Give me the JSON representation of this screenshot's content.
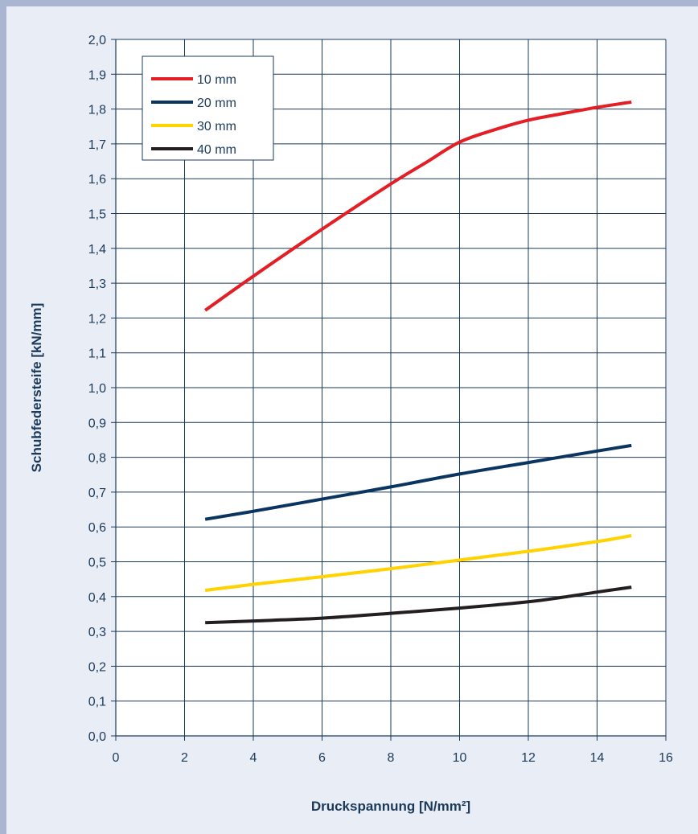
{
  "chart_data": {
    "type": "line",
    "title": "",
    "xlabel": "Druckspannung [N/mm²]",
    "ylabel": "Schubfedersteife [kN/mm]",
    "xlim": [
      0,
      16
    ],
    "ylim": [
      0,
      2.0
    ],
    "x_ticks": [
      0,
      2,
      4,
      6,
      8,
      10,
      12,
      14,
      16
    ],
    "x_tick_labels": [
      "0",
      "2",
      "4",
      "6",
      "8",
      "10",
      "12",
      "14",
      "16"
    ],
    "y_ticks": [
      0,
      0.1,
      0.2,
      0.3,
      0.4,
      0.5,
      0.6,
      0.7,
      0.8,
      0.9,
      1.0,
      1.1,
      1.2,
      1.3,
      1.4,
      1.5,
      1.6,
      1.7,
      1.8,
      1.9,
      2.0
    ],
    "y_tick_labels": [
      "0,0",
      "0,1",
      "0,2",
      "0,3",
      "0,4",
      "0,5",
      "0,6",
      "0,7",
      "0,8",
      "0,9",
      "1,0",
      "1,1",
      "1,2",
      "1,3",
      "1,4",
      "1,5",
      "1,6",
      "1,7",
      "1,8",
      "1,9",
      "2,0"
    ],
    "grid": true,
    "legend_position": "top-left",
    "series": [
      {
        "name": "10 mm",
        "color": "#e31e24",
        "points": [
          [
            2.6,
            1.222
          ],
          [
            4,
            1.32
          ],
          [
            6,
            1.455
          ],
          [
            8,
            1.585
          ],
          [
            9,
            1.645
          ],
          [
            10,
            1.705
          ],
          [
            11,
            1.74
          ],
          [
            12,
            1.768
          ],
          [
            13,
            1.787
          ],
          [
            14,
            1.805
          ],
          [
            15,
            1.82
          ]
        ]
      },
      {
        "name": "20 mm",
        "color": "#0a3560",
        "points": [
          [
            2.6,
            0.622
          ],
          [
            4,
            0.645
          ],
          [
            6,
            0.68
          ],
          [
            8,
            0.715
          ],
          [
            10,
            0.752
          ],
          [
            12,
            0.785
          ],
          [
            14,
            0.818
          ],
          [
            15,
            0.834
          ]
        ]
      },
      {
        "name": "30 mm",
        "color": "#ffd200",
        "points": [
          [
            2.6,
            0.418
          ],
          [
            4,
            0.435
          ],
          [
            6,
            0.457
          ],
          [
            8,
            0.48
          ],
          [
            10,
            0.505
          ],
          [
            12,
            0.53
          ],
          [
            14,
            0.558
          ],
          [
            15,
            0.575
          ]
        ]
      },
      {
        "name": "40 mm",
        "color": "#231f20",
        "points": [
          [
            2.6,
            0.325
          ],
          [
            4,
            0.33
          ],
          [
            6,
            0.338
          ],
          [
            8,
            0.352
          ],
          [
            10,
            0.367
          ],
          [
            12,
            0.385
          ],
          [
            13,
            0.398
          ],
          [
            14,
            0.413
          ],
          [
            15,
            0.427
          ]
        ]
      }
    ]
  }
}
